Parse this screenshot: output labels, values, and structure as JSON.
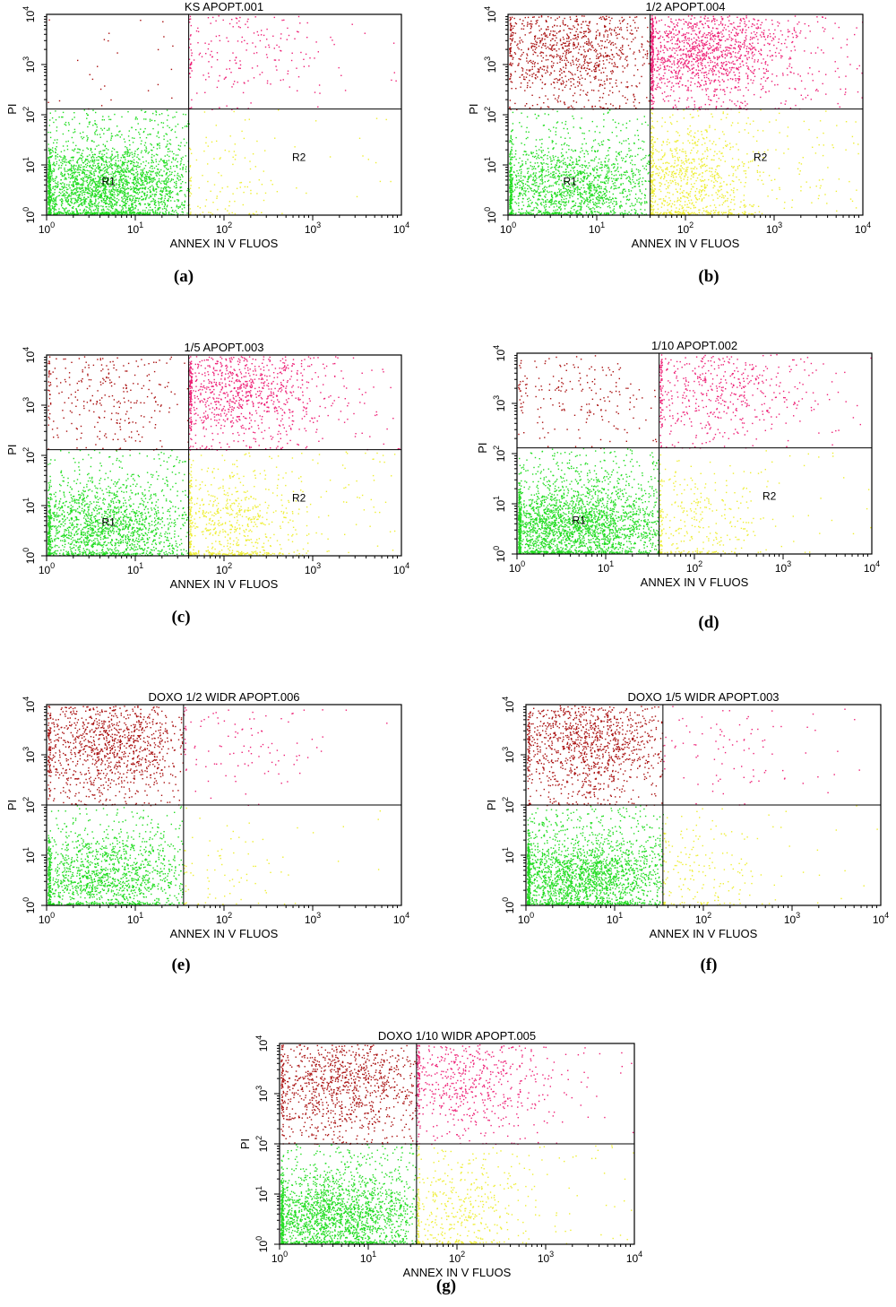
{
  "colors": {
    "live": "#22dd22",
    "early_apoptosis": "#eeee33",
    "late_apoptosis": "#ee2277",
    "necrosis": "#aa1111",
    "axis": "#000000"
  },
  "chart_data": [
    {
      "id": "a",
      "type": "scatter",
      "caption": "(a)",
      "title": "KS APOPT.001",
      "xlabel": "ANNEX IN V FLUOS",
      "ylabel": "PI",
      "xscale": "log",
      "yscale": "log",
      "xlim": [
        1,
        10000
      ],
      "ylim": [
        1,
        10000
      ],
      "x_ticks": [
        "10^0",
        "10^1",
        "10^2",
        "10^3",
        "10^4"
      ],
      "y_ticks": [
        "10^0",
        "10^1",
        "10^2",
        "10^3",
        "10^4"
      ],
      "quadrant_x": 40,
      "quadrant_y": 130,
      "regions": [
        {
          "label": "R1",
          "x": 5,
          "y": 4
        },
        {
          "label": "R2",
          "x": 700,
          "y": 12
        }
      ],
      "quadrant_density": {
        "live": 0.9,
        "early_apoptosis": 0.08,
        "late_apoptosis": 0.12,
        "necrosis": 0.02
      }
    },
    {
      "id": "b",
      "type": "scatter",
      "caption": "(b)",
      "title": "1/2 APOPT.004",
      "xlabel": "ANNEX IN V FLUOS",
      "ylabel": "PI",
      "xscale": "log",
      "yscale": "log",
      "xlim": [
        1,
        10000
      ],
      "ylim": [
        1,
        10000
      ],
      "x_ticks": [
        "10^0",
        "10^1",
        "10^2",
        "10^3",
        "10^4"
      ],
      "y_ticks": [
        "10^0",
        "10^1",
        "10^2",
        "10^3",
        "10^4"
      ],
      "quadrant_x": 40,
      "quadrant_y": 130,
      "regions": [
        {
          "label": "R1",
          "x": 5,
          "y": 4
        },
        {
          "label": "R2",
          "x": 700,
          "y": 12
        }
      ],
      "quadrant_density": {
        "live": 0.55,
        "early_apoptosis": 0.6,
        "late_apoptosis": 0.85,
        "necrosis": 0.6
      }
    },
    {
      "id": "c",
      "type": "scatter",
      "caption": "(c)",
      "title": "1/5 APOPT.003",
      "xlabel": "ANNEX IN V FLUOS",
      "ylabel": "PI",
      "xscale": "log",
      "yscale": "log",
      "xlim": [
        1,
        10000
      ],
      "ylim": [
        1,
        10000
      ],
      "x_ticks": [
        "10^0",
        "10^1",
        "10^2",
        "10^3",
        "10^4"
      ],
      "y_ticks": [
        "10^0",
        "10^1",
        "10^2",
        "10^3",
        "10^4"
      ],
      "quadrant_x": 40,
      "quadrant_y": 130,
      "regions": [
        {
          "label": "R1",
          "x": 5,
          "y": 4
        },
        {
          "label": "R2",
          "x": 700,
          "y": 12
        }
      ],
      "quadrant_density": {
        "live": 0.6,
        "early_apoptosis": 0.45,
        "late_apoptosis": 0.55,
        "necrosis": 0.18
      }
    },
    {
      "id": "d",
      "type": "scatter",
      "caption": "(d)",
      "title": "1/10 APOPT.002",
      "xlabel": "ANNEX IN V FLUOS",
      "ylabel": "PI",
      "xscale": "log",
      "yscale": "log",
      "xlim": [
        1,
        10000
      ],
      "ylim": [
        1,
        10000
      ],
      "x_ticks": [
        "10^0",
        "10^1",
        "10^2",
        "10^3",
        "10^4"
      ],
      "y_ticks": [
        "10^0",
        "10^1",
        "10^2",
        "10^3",
        "10^4"
      ],
      "quadrant_x": 40,
      "quadrant_y": 130,
      "regions": [
        {
          "label": "R1",
          "x": 5,
          "y": 4
        },
        {
          "label": "R2",
          "x": 700,
          "y": 12
        }
      ],
      "quadrant_density": {
        "live": 0.85,
        "early_apoptosis": 0.2,
        "late_apoptosis": 0.3,
        "necrosis": 0.12
      }
    },
    {
      "id": "e",
      "type": "scatter",
      "caption": "(e)",
      "title": "DOXO 1/2  WIDR APOPT.006",
      "xlabel": "ANNEX IN V FLUOS",
      "ylabel": "PI",
      "xscale": "log",
      "yscale": "log",
      "xlim": [
        1,
        10000
      ],
      "ylim": [
        1,
        10000
      ],
      "x_ticks": [
        "10^0",
        "10^1",
        "10^2",
        "10^3",
        "10^4"
      ],
      "y_ticks": [
        "10^0",
        "10^1",
        "10^2",
        "10^3",
        "10^4"
      ],
      "quadrant_x": 35,
      "quadrant_y": 100,
      "regions": [],
      "quadrant_density": {
        "live": 0.5,
        "early_apoptosis": 0.05,
        "late_apoptosis": 0.06,
        "necrosis": 0.7
      }
    },
    {
      "id": "f",
      "type": "scatter",
      "caption": "(f)",
      "title": "DOXO 1/5  WIDR APOPT.003",
      "xlabel": "ANNEX IN V FLUOS",
      "ylabel": "PI",
      "xscale": "log",
      "yscale": "log",
      "xlim": [
        1,
        10000
      ],
      "ylim": [
        1,
        10000
      ],
      "x_ticks": [
        "10^0",
        "10^1",
        "10^2",
        "10^3",
        "10^4"
      ],
      "y_ticks": [
        "10^0",
        "10^1",
        "10^2",
        "10^3",
        "10^4"
      ],
      "quadrant_x": 35,
      "quadrant_y": 100,
      "regions": [],
      "quadrant_density": {
        "live": 0.75,
        "early_apoptosis": 0.12,
        "late_apoptosis": 0.05,
        "necrosis": 0.7
      }
    },
    {
      "id": "g",
      "type": "scatter",
      "caption": "(g)",
      "title": "DOXO 1/10  WIDR APOPT.005",
      "xlabel": "ANNEX IN V FLUOS",
      "ylabel": "PI",
      "xscale": "log",
      "yscale": "log",
      "xlim": [
        1,
        10000
      ],
      "ylim": [
        1,
        10000
      ],
      "x_ticks": [
        "10^0",
        "10^1",
        "10^2",
        "10^3",
        "10^4"
      ],
      "y_ticks": [
        "10^0",
        "10^1",
        "10^2",
        "10^3",
        "10^4"
      ],
      "quadrant_x": 35,
      "quadrant_y": 100,
      "regions": [],
      "quadrant_density": {
        "live": 0.7,
        "early_apoptosis": 0.3,
        "late_apoptosis": 0.35,
        "necrosis": 0.65
      }
    }
  ]
}
